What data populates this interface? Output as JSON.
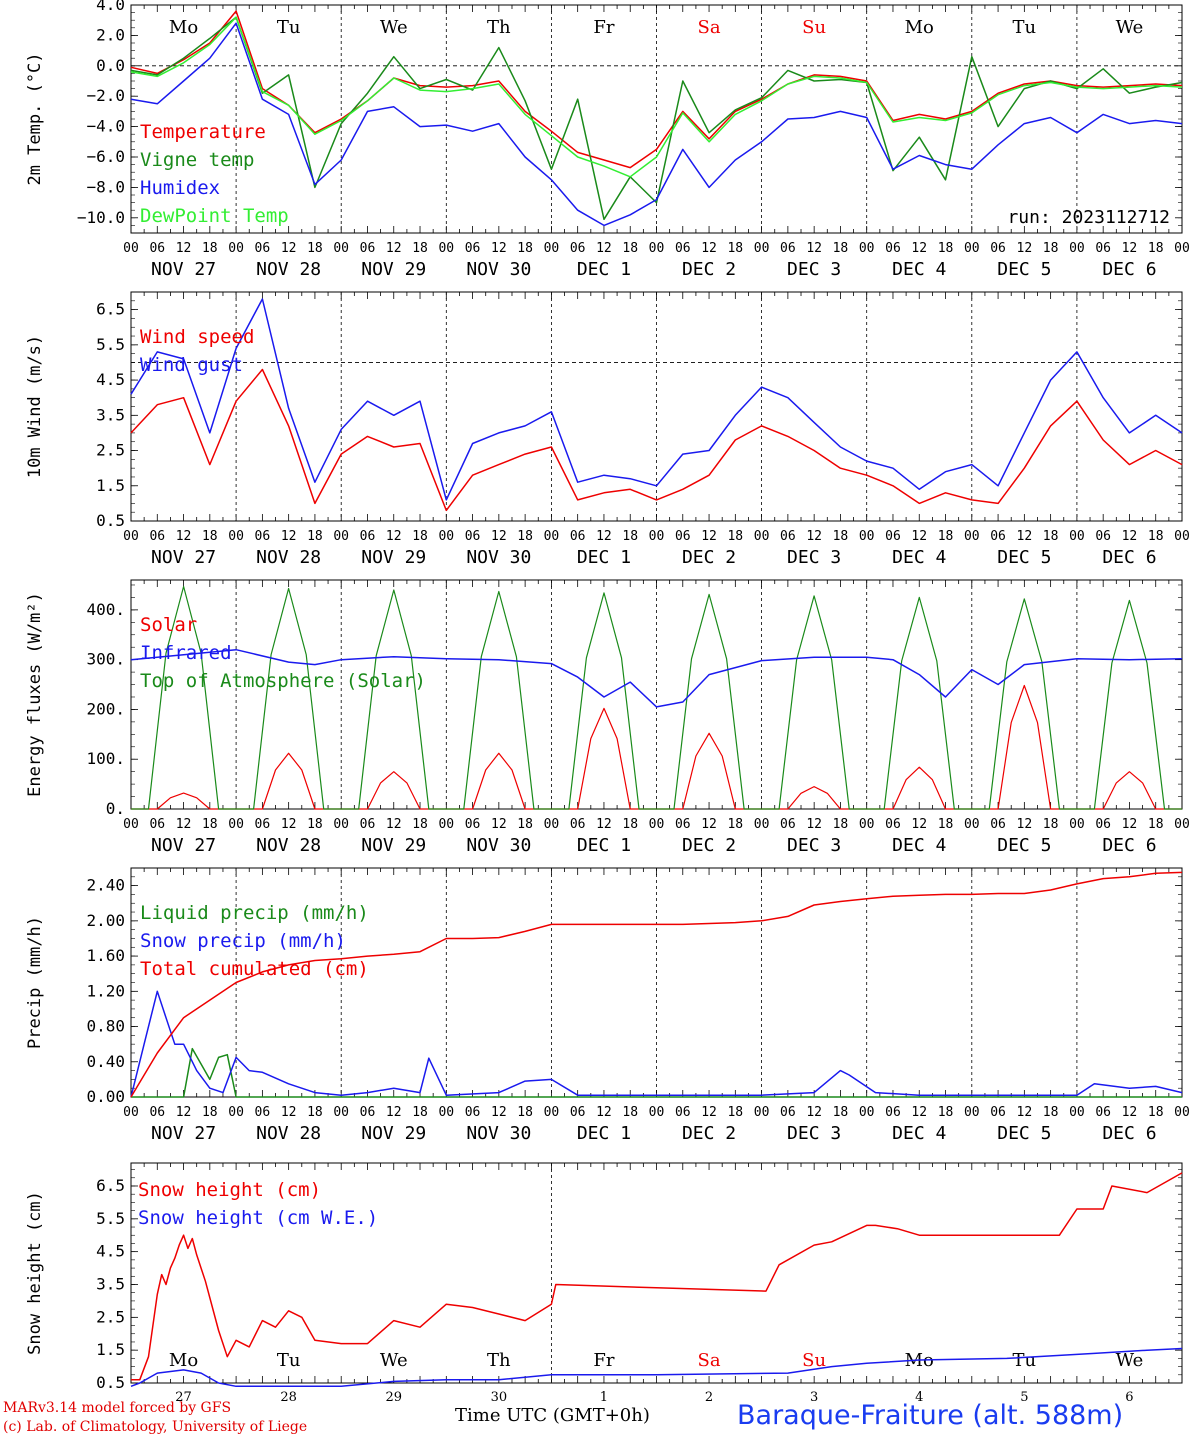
{
  "footer": {
    "credit_line1": "MARv3.14 model forced by GFS",
    "credit_line2": "(c) Lab. of Climatology, University of Liege",
    "x_axis_title": "Time UTC (GMT+0h)",
    "station": "Baraque-Fraiture (alt. 588m)"
  },
  "colors": {
    "red": "#ee0000",
    "green": "#1a8a1a",
    "blue": "#1a1aee",
    "lightgreen": "#33ee33"
  },
  "day_names": [
    "Mo",
    "Tu",
    "We",
    "Th",
    "Fr",
    "Sa",
    "Su",
    "Mo",
    "Tu",
    "We"
  ],
  "weekend_days": [
    "Sa",
    "Su"
  ],
  "date_labels": [
    "NOV 27",
    "NOV 28",
    "NOV 29",
    "NOV 30",
    "DEC  1",
    "DEC  2",
    "DEC  3",
    "DEC  4",
    "DEC  5",
    "DEC  6"
  ],
  "hour_labels": [
    "00",
    "06",
    "12",
    "18"
  ],
  "chart_data": [
    {
      "id": "temp",
      "type": "line",
      "ylabel": "2m Temp. (°C)",
      "ylim": [
        -11,
        4
      ],
      "ticks": [
        4.0,
        2.0,
        0.0,
        -2.0,
        -4.0,
        -6.0,
        -8.0,
        -10.0
      ],
      "tick_labels": [
        "4.0",
        "2.0",
        "0.0",
        "−2.0",
        "−4.0",
        "−6.0",
        "−8.0",
        "−10.0"
      ],
      "dashed_ref": 0,
      "annotation": "run: 2023112712",
      "x_hours": [
        0,
        6,
        12,
        18,
        24,
        30,
        36,
        42,
        48,
        54,
        60,
        66,
        72,
        78,
        84,
        90,
        96,
        102,
        108,
        114,
        120,
        126,
        132,
        138,
        144,
        150,
        156,
        162,
        168,
        174,
        180,
        186,
        192,
        198,
        204,
        210,
        216,
        222,
        228,
        234,
        240
      ],
      "series": [
        {
          "name": "Temperature",
          "color": "#ee0000",
          "values": [
            -0.1,
            -0.5,
            0.4,
            1.5,
            3.6,
            -1.5,
            -2.6,
            -4.4,
            -3.5,
            -2.3,
            -0.8,
            -1.3,
            -1.4,
            -1.3,
            -1.0,
            -3.0,
            -4.3,
            -5.7,
            -6.2,
            -6.7,
            -5.5,
            -3.0,
            -4.8,
            -3.0,
            -2.2,
            -1.2,
            -0.6,
            -0.7,
            -1.0,
            -3.6,
            -3.2,
            -3.5,
            -3.0,
            -1.8,
            -1.2,
            -1.0,
            -1.3,
            -1.4,
            -1.3,
            -1.2,
            -1.3
          ]
        },
        {
          "name": "Vigne temp",
          "color": "#1a8a1a",
          "values": [
            -0.3,
            -0.6,
            0.5,
            1.8,
            3.2,
            -1.8,
            -0.6,
            -8.0,
            -3.8,
            -1.8,
            0.6,
            -1.5,
            -0.9,
            -1.6,
            1.2,
            -2.3,
            -6.8,
            -2.2,
            -10.1,
            -7.3,
            -9.0,
            -1.0,
            -4.4,
            -2.9,
            -2.1,
            -0.3,
            -1.0,
            -0.9,
            -1.1,
            -6.9,
            -4.7,
            -7.5,
            0.6,
            -4.0,
            -1.5,
            -1.0,
            -1.5,
            -0.2,
            -1.8,
            -1.4,
            -1.1
          ]
        },
        {
          "name": "Humidex",
          "color": "#1a1aee",
          "values": [
            -2.2,
            -2.5,
            -1.0,
            0.5,
            2.8,
            -2.2,
            -3.2,
            -7.8,
            -6.2,
            -3.0,
            -2.7,
            -4.0,
            -3.9,
            -4.3,
            -3.8,
            -6.0,
            -7.5,
            -9.5,
            -10.5,
            -9.8,
            -8.8,
            -5.5,
            -8.0,
            -6.2,
            -5.0,
            -3.5,
            -3.4,
            -3.0,
            -3.4,
            -6.8,
            -5.9,
            -6.5,
            -6.8,
            -5.2,
            -3.8,
            -3.4,
            -4.4,
            -3.2,
            -3.8,
            -3.6,
            -3.8
          ]
        },
        {
          "name": "DewPoint Temp",
          "color": "#33ee33",
          "values": [
            -0.4,
            -0.7,
            0.2,
            1.4,
            3.2,
            -1.7,
            -2.6,
            -4.5,
            -3.6,
            -2.3,
            -0.8,
            -1.6,
            -1.7,
            -1.5,
            -1.2,
            -3.2,
            -4.6,
            -6.0,
            -6.6,
            -7.3,
            -6.0,
            -3.1,
            -5.0,
            -3.2,
            -2.3,
            -1.2,
            -0.7,
            -0.8,
            -1.1,
            -3.7,
            -3.4,
            -3.6,
            -3.1,
            -1.9,
            -1.3,
            -1.1,
            -1.4,
            -1.5,
            -1.4,
            -1.3,
            -1.4
          ]
        }
      ]
    },
    {
      "id": "wind",
      "type": "line",
      "ylabel": "10m Wind (m/s)",
      "ylim": [
        0.5,
        7
      ],
      "ticks": [
        6.5,
        5.5,
        4.5,
        3.5,
        2.5,
        1.5,
        0.5
      ],
      "tick_labels": [
        "6.5",
        "5.5",
        "4.5",
        "3.5",
        "2.5",
        "1.5",
        "0.5"
      ],
      "dashed_ref": 5,
      "x_hours": [
        0,
        6,
        12,
        18,
        24,
        30,
        36,
        42,
        48,
        54,
        60,
        66,
        72,
        78,
        84,
        90,
        96,
        102,
        108,
        114,
        120,
        126,
        132,
        138,
        144,
        150,
        156,
        162,
        168,
        174,
        180,
        186,
        192,
        198,
        204,
        210,
        216,
        222,
        228,
        234,
        240
      ],
      "series": [
        {
          "name": "Wind speed",
          "color": "#ee0000",
          "values": [
            3.0,
            3.8,
            4.0,
            2.1,
            3.9,
            4.8,
            3.2,
            1.0,
            2.4,
            2.9,
            2.6,
            2.7,
            0.8,
            1.8,
            2.1,
            2.4,
            2.6,
            1.1,
            1.3,
            1.4,
            1.1,
            1.4,
            1.8,
            2.8,
            3.2,
            2.9,
            2.5,
            2.0,
            1.8,
            1.5,
            1.0,
            1.3,
            1.1,
            1.0,
            2.0,
            3.2,
            3.9,
            2.8,
            2.1,
            2.5,
            2.1
          ]
        },
        {
          "name": "Wind gust",
          "color": "#1a1aee",
          "values": [
            4.1,
            5.3,
            5.1,
            3.0,
            5.4,
            6.8,
            3.7,
            1.6,
            3.1,
            3.9,
            3.5,
            3.9,
            1.1,
            2.7,
            3.0,
            3.2,
            3.6,
            1.6,
            1.8,
            1.7,
            1.5,
            2.4,
            2.5,
            3.5,
            4.3,
            4.0,
            3.3,
            2.6,
            2.2,
            2.0,
            1.4,
            1.9,
            2.1,
            1.5,
            3.0,
            4.5,
            5.3,
            4.0,
            3.0,
            3.5,
            3.0
          ]
        }
      ]
    },
    {
      "id": "energy",
      "type": "line",
      "ylabel": "Energy fluxes (W/m²)",
      "ylim": [
        0,
        460
      ],
      "ticks": [
        400,
        300,
        200,
        100,
        0
      ],
      "tick_labels": [
        "400.",
        "300.",
        "200.",
        "100.",
        "0."
      ],
      "daily_pulses": [
        {
          "name": "Solar",
          "color": "#ee0000",
          "peaks": [
            32,
            112,
            75,
            112,
            202,
            152,
            45,
            84,
            248,
            75
          ]
        },
        {
          "name": "Top of Atmosphere (Solar)",
          "color": "#1a8a1a",
          "peaks": [
            447,
            443,
            440,
            437,
            434,
            431,
            428,
            425,
            422,
            419
          ]
        }
      ],
      "series": [
        {
          "name": "Solar",
          "color": "#ee0000",
          "values": []
        },
        {
          "name": "Infrared",
          "color": "#1a1aee",
          "x_hours": [
            0,
            12,
            24,
            36,
            42,
            48,
            60,
            72,
            84,
            96,
            102,
            108,
            114,
            120,
            126,
            132,
            144,
            156,
            168,
            174,
            180,
            186,
            192,
            198,
            204,
            216,
            228,
            240
          ],
          "values": [
            300,
            310,
            320,
            295,
            290,
            300,
            306,
            302,
            300,
            292,
            265,
            225,
            255,
            205,
            215,
            270,
            298,
            305,
            305,
            300,
            270,
            225,
            280,
            250,
            290,
            302,
            300,
            302
          ]
        }
      ]
    },
    {
      "id": "precip",
      "type": "line",
      "ylabel": "Precip (mm/h)",
      "ylim": [
        0,
        2.6
      ],
      "ticks": [
        2.4,
        2.0,
        1.6,
        1.2,
        0.8,
        0.4,
        0.0
      ],
      "tick_labels": [
        "2.40",
        "2.00",
        "1.60",
        "1.20",
        "0.80",
        "0.40",
        "0.00"
      ],
      "series": [
        {
          "name": "Liquid precip (mm/h)",
          "color": "#1a8a1a",
          "x_hours": [
            0,
            12,
            14,
            18,
            20,
            22,
            24,
            26,
            240
          ],
          "values": [
            0,
            0,
            0.55,
            0.2,
            0.45,
            0.48,
            0,
            0,
            0
          ]
        },
        {
          "name": "Snow precip (mm/h)",
          "color": "#1a1aee",
          "x_hours": [
            0,
            3,
            6,
            8,
            10,
            12,
            15,
            18,
            21,
            24,
            27,
            30,
            36,
            42,
            48,
            54,
            60,
            66,
            68,
            72,
            84,
            90,
            96,
            102,
            144,
            156,
            162,
            164,
            170,
            180,
            216,
            220,
            228,
            234,
            240
          ],
          "values": [
            0,
            0.6,
            1.2,
            0.9,
            0.6,
            0.6,
            0.3,
            0.1,
            0.05,
            0.45,
            0.3,
            0.28,
            0.15,
            0.05,
            0.02,
            0.05,
            0.1,
            0.05,
            0.44,
            0.02,
            0.05,
            0.18,
            0.2,
            0.02,
            0.02,
            0.05,
            0.3,
            0.25,
            0.05,
            0.02,
            0.02,
            0.15,
            0.1,
            0.12,
            0.05
          ]
        },
        {
          "name": "Total cumulated (cm)",
          "color": "#ee0000",
          "x_hours": [
            0,
            6,
            12,
            18,
            24,
            30,
            36,
            42,
            48,
            54,
            60,
            66,
            72,
            78,
            84,
            90,
            96,
            102,
            108,
            114,
            120,
            126,
            132,
            138,
            144,
            150,
            156,
            162,
            168,
            174,
            180,
            186,
            192,
            198,
            204,
            210,
            216,
            222,
            228,
            234,
            240
          ],
          "values": [
            0,
            0.5,
            0.9,
            1.1,
            1.3,
            1.42,
            1.5,
            1.55,
            1.57,
            1.6,
            1.62,
            1.65,
            1.8,
            1.8,
            1.81,
            1.88,
            1.96,
            1.96,
            1.96,
            1.96,
            1.96,
            1.96,
            1.97,
            1.98,
            2.0,
            2.05,
            2.18,
            2.22,
            2.25,
            2.28,
            2.29,
            2.3,
            2.3,
            2.31,
            2.31,
            2.35,
            2.42,
            2.48,
            2.5,
            2.54,
            2.55
          ]
        }
      ]
    },
    {
      "id": "snow",
      "type": "line",
      "ylabel": "Snow height (cm)",
      "ylim": [
        0.5,
        7.2
      ],
      "ticks": [
        6.5,
        5.5,
        4.5,
        3.5,
        2.5,
        1.5,
        0.5
      ],
      "tick_labels": [
        "6.5",
        "5.5",
        "4.5",
        "3.5",
        "2.5",
        "1.5",
        "0.5"
      ],
      "bottom_date_labels": [
        "27",
        "28",
        "29",
        "30",
        "1",
        "2",
        "3",
        "4",
        "5",
        "6"
      ],
      "series": [
        {
          "name": "Snow height (cm)",
          "color": "#ee0000",
          "x_hours": [
            0,
            2,
            4,
            6,
            7,
            8,
            9,
            10,
            11,
            12,
            13,
            14,
            15,
            17,
            20,
            22,
            24,
            27,
            30,
            33,
            36,
            39,
            42,
            48,
            54,
            60,
            66,
            72,
            78,
            84,
            90,
            96,
            97,
            120,
            145,
            148,
            156,
            160,
            168,
            170,
            175,
            180,
            200,
            212,
            216,
            222,
            224,
            232,
            240
          ],
          "values": [
            0.6,
            0.6,
            1.3,
            3.2,
            3.8,
            3.5,
            4.0,
            4.3,
            4.7,
            5.0,
            4.6,
            4.9,
            4.4,
            3.6,
            2.1,
            1.3,
            1.8,
            1.6,
            2.4,
            2.2,
            2.7,
            2.5,
            1.8,
            1.7,
            1.7,
            2.4,
            2.2,
            2.9,
            2.8,
            2.6,
            2.4,
            2.9,
            3.5,
            3.4,
            3.3,
            4.1,
            4.7,
            4.8,
            5.3,
            5.3,
            5.2,
            5.0,
            5.0,
            5.0,
            5.8,
            5.8,
            6.5,
            6.3,
            6.9
          ]
        },
        {
          "name": "Snow height (cm W.E.)",
          "color": "#1a1aee",
          "x_hours": [
            0,
            2,
            6,
            12,
            16,
            20,
            24,
            48,
            60,
            72,
            84,
            96,
            120,
            150,
            160,
            168,
            180,
            200,
            220,
            232,
            240
          ],
          "values": [
            0.4,
            0.5,
            0.8,
            0.9,
            0.8,
            0.5,
            0.4,
            0.4,
            0.55,
            0.6,
            0.6,
            0.75,
            0.75,
            0.8,
            1.0,
            1.1,
            1.2,
            1.25,
            1.4,
            1.5,
            1.55
          ]
        }
      ]
    }
  ]
}
